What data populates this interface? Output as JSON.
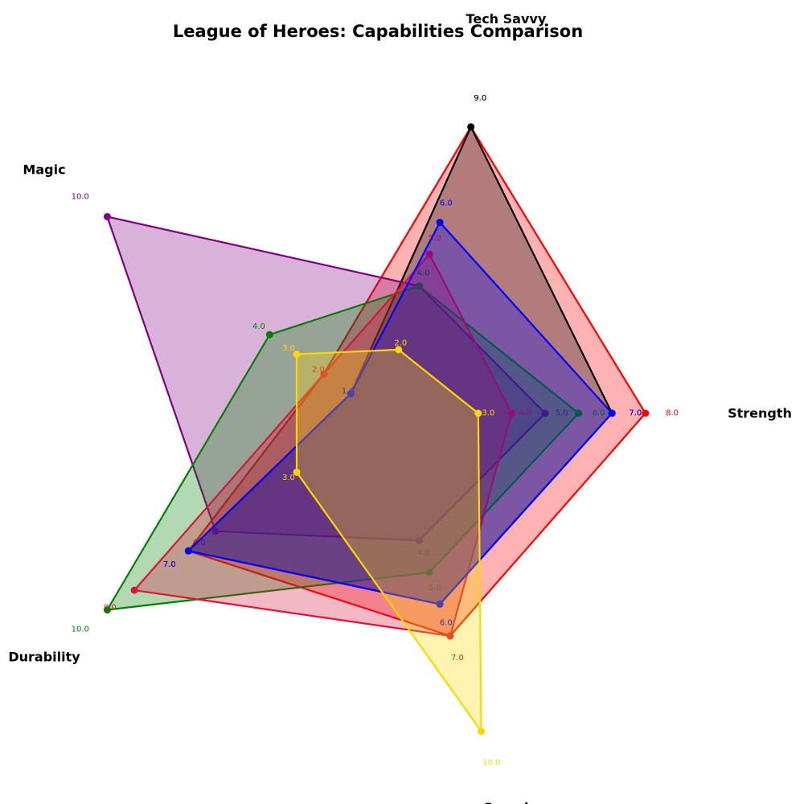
{
  "chart_data": {
    "type": "radar",
    "title": "League of Heroes: Capabilities Comparison",
    "axes": [
      "Strength",
      "Tech Savvy",
      "Magic",
      "Durability",
      "Speed"
    ],
    "rmax": 10,
    "grid": false,
    "legend": "none",
    "series": [
      {
        "color": "#ff0000",
        "fill_alpha": 0.3,
        "values": [
          8,
          9,
          2,
          7,
          7
        ]
      },
      {
        "color": "#000000",
        "fill_alpha": 0.3,
        "values": [
          7,
          9,
          1,
          7,
          6
        ]
      },
      {
        "color": "#800080",
        "fill_alpha": 0.3,
        "values": [
          5,
          4,
          10,
          6,
          4
        ]
      },
      {
        "color": "#008000",
        "fill_alpha": 0.3,
        "values": [
          6,
          4,
          4,
          10,
          5
        ]
      },
      {
        "color": "#dc143c",
        "fill_alpha": 0.3,
        "values": [
          4,
          5,
          2,
          9,
          7
        ]
      },
      {
        "color": "#0000ff",
        "fill_alpha": 0.3,
        "values": [
          7,
          6,
          1,
          7,
          6
        ]
      },
      {
        "color": "#ffd700",
        "fill_alpha": 0.3,
        "values": [
          3,
          2,
          3,
          3,
          10
        ]
      }
    ]
  }
}
